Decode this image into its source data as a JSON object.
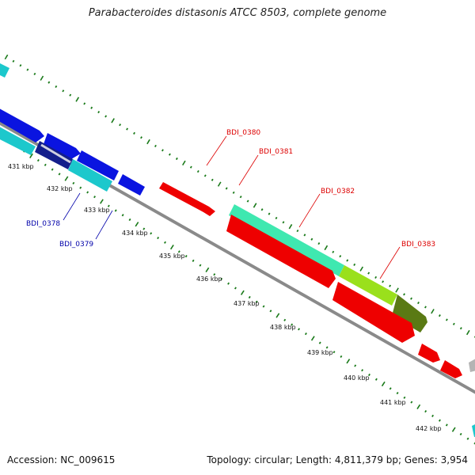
{
  "title": "Parabacteroides distasonis ATCC 8503, complete genome",
  "footer": {
    "accession": "Accession: NC_009615",
    "summary": "Topology: circular; Length: 4,811,379 bp; Genes: 3,954"
  },
  "scale_labels": [
    "431 kbp",
    "432 kbp",
    "433 kbp",
    "434 kbp",
    "435 kbp",
    "436 kbp",
    "437 kbp",
    "438 kbp",
    "439 kbp",
    "440 kbp",
    "441 kbp",
    "442 kbp"
  ],
  "gene_labels": [
    {
      "text": "BDI_0378",
      "color": "#0000aa"
    },
    {
      "text": "BDI_0379",
      "color": "#0000aa"
    },
    {
      "text": "BDI_0380",
      "color": "#dd0000"
    },
    {
      "text": "BDI_0381",
      "color": "#dd0000"
    },
    {
      "text": "BDI_0382",
      "color": "#dd0000"
    },
    {
      "text": "BDI_0383",
      "color": "#dd0000"
    }
  ],
  "colors": {
    "backbone": "#8a8a8a",
    "tick": "#1a7a1a",
    "blue_gene": "#0a14e0",
    "cyan_gene": "#1cc8cc",
    "red_gene": "#ee0000",
    "teal_gene": "#3fe8b0",
    "lime_gene": "#9ae01c",
    "olive_gene": "#5a7a14",
    "navy_gene": "#141e8c",
    "grey_gene": "#b4b4b4"
  }
}
